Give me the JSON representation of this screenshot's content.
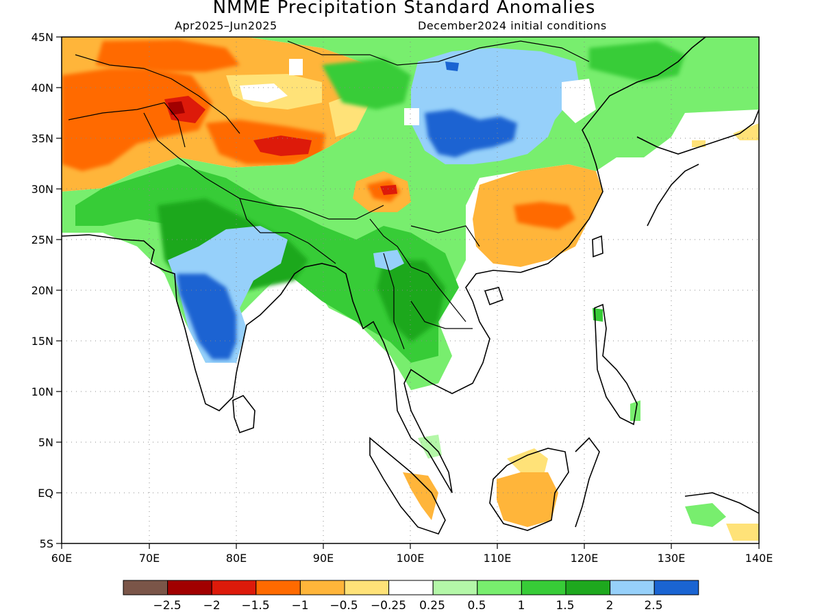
{
  "title": "NMME Precipitation Standard Anomalies",
  "subtitle_left": "Apr2025–Jun2025",
  "subtitle_right": "December2024 initial conditions",
  "lat_labels": [
    "45N",
    "40N",
    "35N",
    "30N",
    "25N",
    "20N",
    "15N",
    "10N",
    "5N",
    "EQ",
    "5S"
  ],
  "lon_labels": [
    "60E",
    "70E",
    "80E",
    "90E",
    "100E",
    "110E",
    "120E",
    "130E",
    "140E"
  ],
  "colorbar": {
    "colors": [
      "#7a5548",
      "#a10000",
      "#dd1a0a",
      "#ff6a00",
      "#ffb53a",
      "#ffe278",
      "#ffffff",
      "#b4f7a8",
      "#78ee6e",
      "#37cc37",
      "#1ea81e",
      "#96d0fa",
      "#1a64d2"
    ],
    "labels": [
      "−2.5",
      "−2",
      "−1.5",
      "−1",
      "−0.5",
      "−0.25",
      "0.25",
      "0.5",
      "1",
      "1.5",
      "2",
      "2.5"
    ]
  },
  "map": {
    "extent": {
      "lon_min": 60,
      "lon_max": 140,
      "lat_min": -5,
      "lat_max": 45
    },
    "gridlines": "dotted"
  }
}
